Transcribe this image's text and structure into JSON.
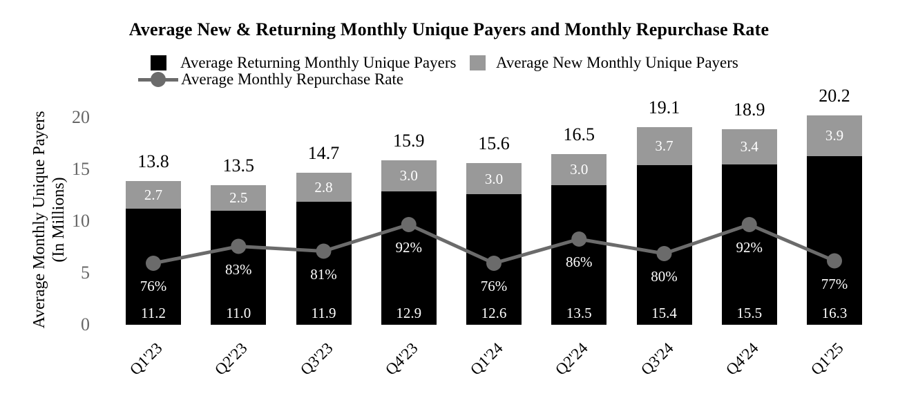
{
  "title": "Average New & Returning Monthly Unique Payers and Monthly Repurchase Rate",
  "chart_data": {
    "type": "bar",
    "subtype": "stacked-bar-with-line-overlay",
    "title": "Average New & Returning Monthly Unique Payers and Monthly Repurchase Rate",
    "categories": [
      "Q1'23",
      "Q2'23",
      "Q3'23",
      "Q4'23",
      "Q1'24",
      "Q2'24",
      "Q3'24",
      "Q4'24",
      "Q1'25"
    ],
    "series": [
      {
        "name": "Average Returning Monthly Unique Payers",
        "type": "bar",
        "color": "#000000",
        "values": [
          11.2,
          11.0,
          11.9,
          12.9,
          12.6,
          13.5,
          15.4,
          15.5,
          16.3
        ],
        "labels": [
          "11.2",
          "11.0",
          "11.9",
          "12.9",
          "12.6",
          "13.5",
          "15.4",
          "15.5",
          "16.3"
        ]
      },
      {
        "name": "Average New Monthly Unique Payers",
        "type": "bar",
        "color": "#999999",
        "values": [
          2.7,
          2.5,
          2.8,
          3.0,
          3.0,
          3.0,
          3.7,
          3.4,
          3.9
        ],
        "labels": [
          "2.7",
          "2.5",
          "2.8",
          "3.0",
          "3.0",
          "3.0",
          "3.7",
          "3.4",
          "3.9"
        ]
      },
      {
        "name": "Average Monthly Repurchase Rate",
        "type": "line",
        "color": "#6b6b6b",
        "values": [
          76,
          83,
          81,
          92,
          76,
          86,
          80,
          92,
          77
        ],
        "labels": [
          "76%",
          "83%",
          "81%",
          "92%",
          "76%",
          "86%",
          "80%",
          "92%",
          "77%"
        ]
      }
    ],
    "totals": [
      "13.8",
      "13.5",
      "14.7",
      "15.9",
      "15.6",
      "16.5",
      "19.1",
      "18.9",
      "20.2"
    ],
    "ylabel": "Average Monthly Unique Payers (In Millions)",
    "ylabel_lines": [
      "Average Monthly Unique Payers",
      "(In Millions)"
    ],
    "y_axis": {
      "ticks": [
        "20",
        "15",
        "10",
        "5",
        "0"
      ],
      "tick_values": [
        20,
        15,
        10,
        5,
        0
      ],
      "range": [
        0,
        20
      ]
    },
    "grid": false,
    "axis_lines": false,
    "legend_position": "top-left",
    "label_text_color_inside_bars": "#ffffff",
    "tick_label_color": "#666666"
  }
}
